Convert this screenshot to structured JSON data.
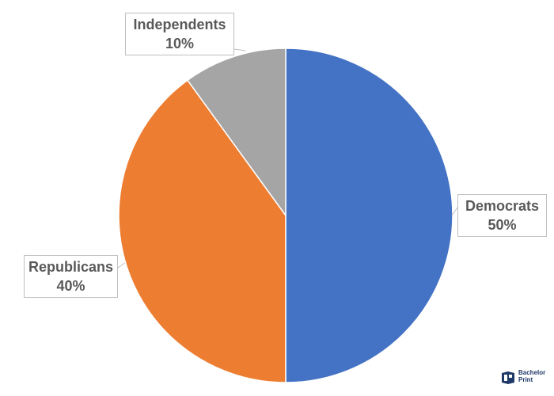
{
  "chart_data": {
    "type": "pie",
    "slices": [
      {
        "label": "Democrats",
        "value": 50,
        "percent_label": "50%",
        "color": "#4472c4"
      },
      {
        "label": "Republicans",
        "value": 40,
        "percent_label": "40%",
        "color": "#ed7d31"
      },
      {
        "label": "Independents",
        "value": 10,
        "percent_label": "10%",
        "color": "#a5a5a5"
      }
    ],
    "start_angle_deg": 0,
    "direction": "clockwise",
    "label_style": "callout"
  },
  "watermark": {
    "line1": "Bachelor",
    "line2": "Print",
    "brand_color": "#1f3a68"
  }
}
